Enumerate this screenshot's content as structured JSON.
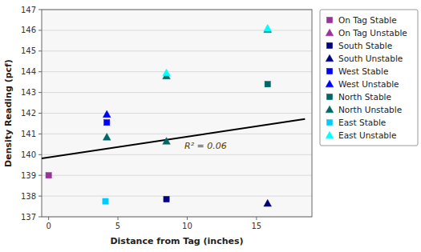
{
  "chart_data": {
    "type": "scatter",
    "xlabel": "Distance from Tag (inches)",
    "ylabel": "Density Reading (pcf)",
    "xlim": [
      -0.5,
      19
    ],
    "ylim": [
      137,
      147
    ],
    "xticks": [
      0,
      5,
      10,
      15
    ],
    "yticks": [
      137,
      138,
      139,
      140,
      141,
      142,
      143,
      144,
      145,
      146,
      147
    ],
    "grid": true,
    "legend": "right",
    "annotations": [
      {
        "text": "R² = 0.06",
        "x": 9.8,
        "y": 140.3
      }
    ],
    "series": [
      {
        "name": "On Tag Stable",
        "color": "#993399",
        "marker": "square",
        "x": [
          0
        ],
        "values": [
          139.0
        ]
      },
      {
        "name": "On Tag Unstable",
        "color": "#993399",
        "marker": "triangle",
        "x": [],
        "values": []
      },
      {
        "name": "South Stable",
        "color": "#000080",
        "marker": "square",
        "x": [
          8.5
        ],
        "values": [
          137.85
        ]
      },
      {
        "name": "South Unstable",
        "color": "#000080",
        "marker": "triangle",
        "x": [
          15.8
        ],
        "values": [
          137.65
        ]
      },
      {
        "name": "West Stable",
        "color": "#0000FF",
        "marker": "square",
        "x": [
          4.2
        ],
        "values": [
          141.55
        ]
      },
      {
        "name": "West Unstable",
        "color": "#0000FF",
        "marker": "triangle",
        "x": [
          4.2
        ],
        "values": [
          141.95
        ]
      },
      {
        "name": "North Stable",
        "color": "#006666",
        "marker": "square",
        "x": [
          15.8
        ],
        "values": [
          143.4
        ]
      },
      {
        "name": "North Unstable",
        "color": "#006666",
        "marker": "triangle",
        "x": [
          4.2,
          8.5,
          8.5,
          15.8
        ],
        "values": [
          140.85,
          140.65,
          143.8,
          146.05
        ]
      },
      {
        "name": "East Stable",
        "color": "#00CCFF",
        "marker": "square",
        "x": [
          4.1
        ],
        "values": [
          137.75
        ]
      },
      {
        "name": "East Unstable",
        "color": "#00FFFF",
        "marker": "triangle",
        "x": [
          8.5,
          15.8
        ],
        "values": [
          143.95,
          146.1
        ]
      },
      {
        "type": "line",
        "color": "#000000",
        "x": [
          -0.5,
          18.5
        ],
        "values": [
          139.82,
          141.72
        ]
      }
    ]
  }
}
